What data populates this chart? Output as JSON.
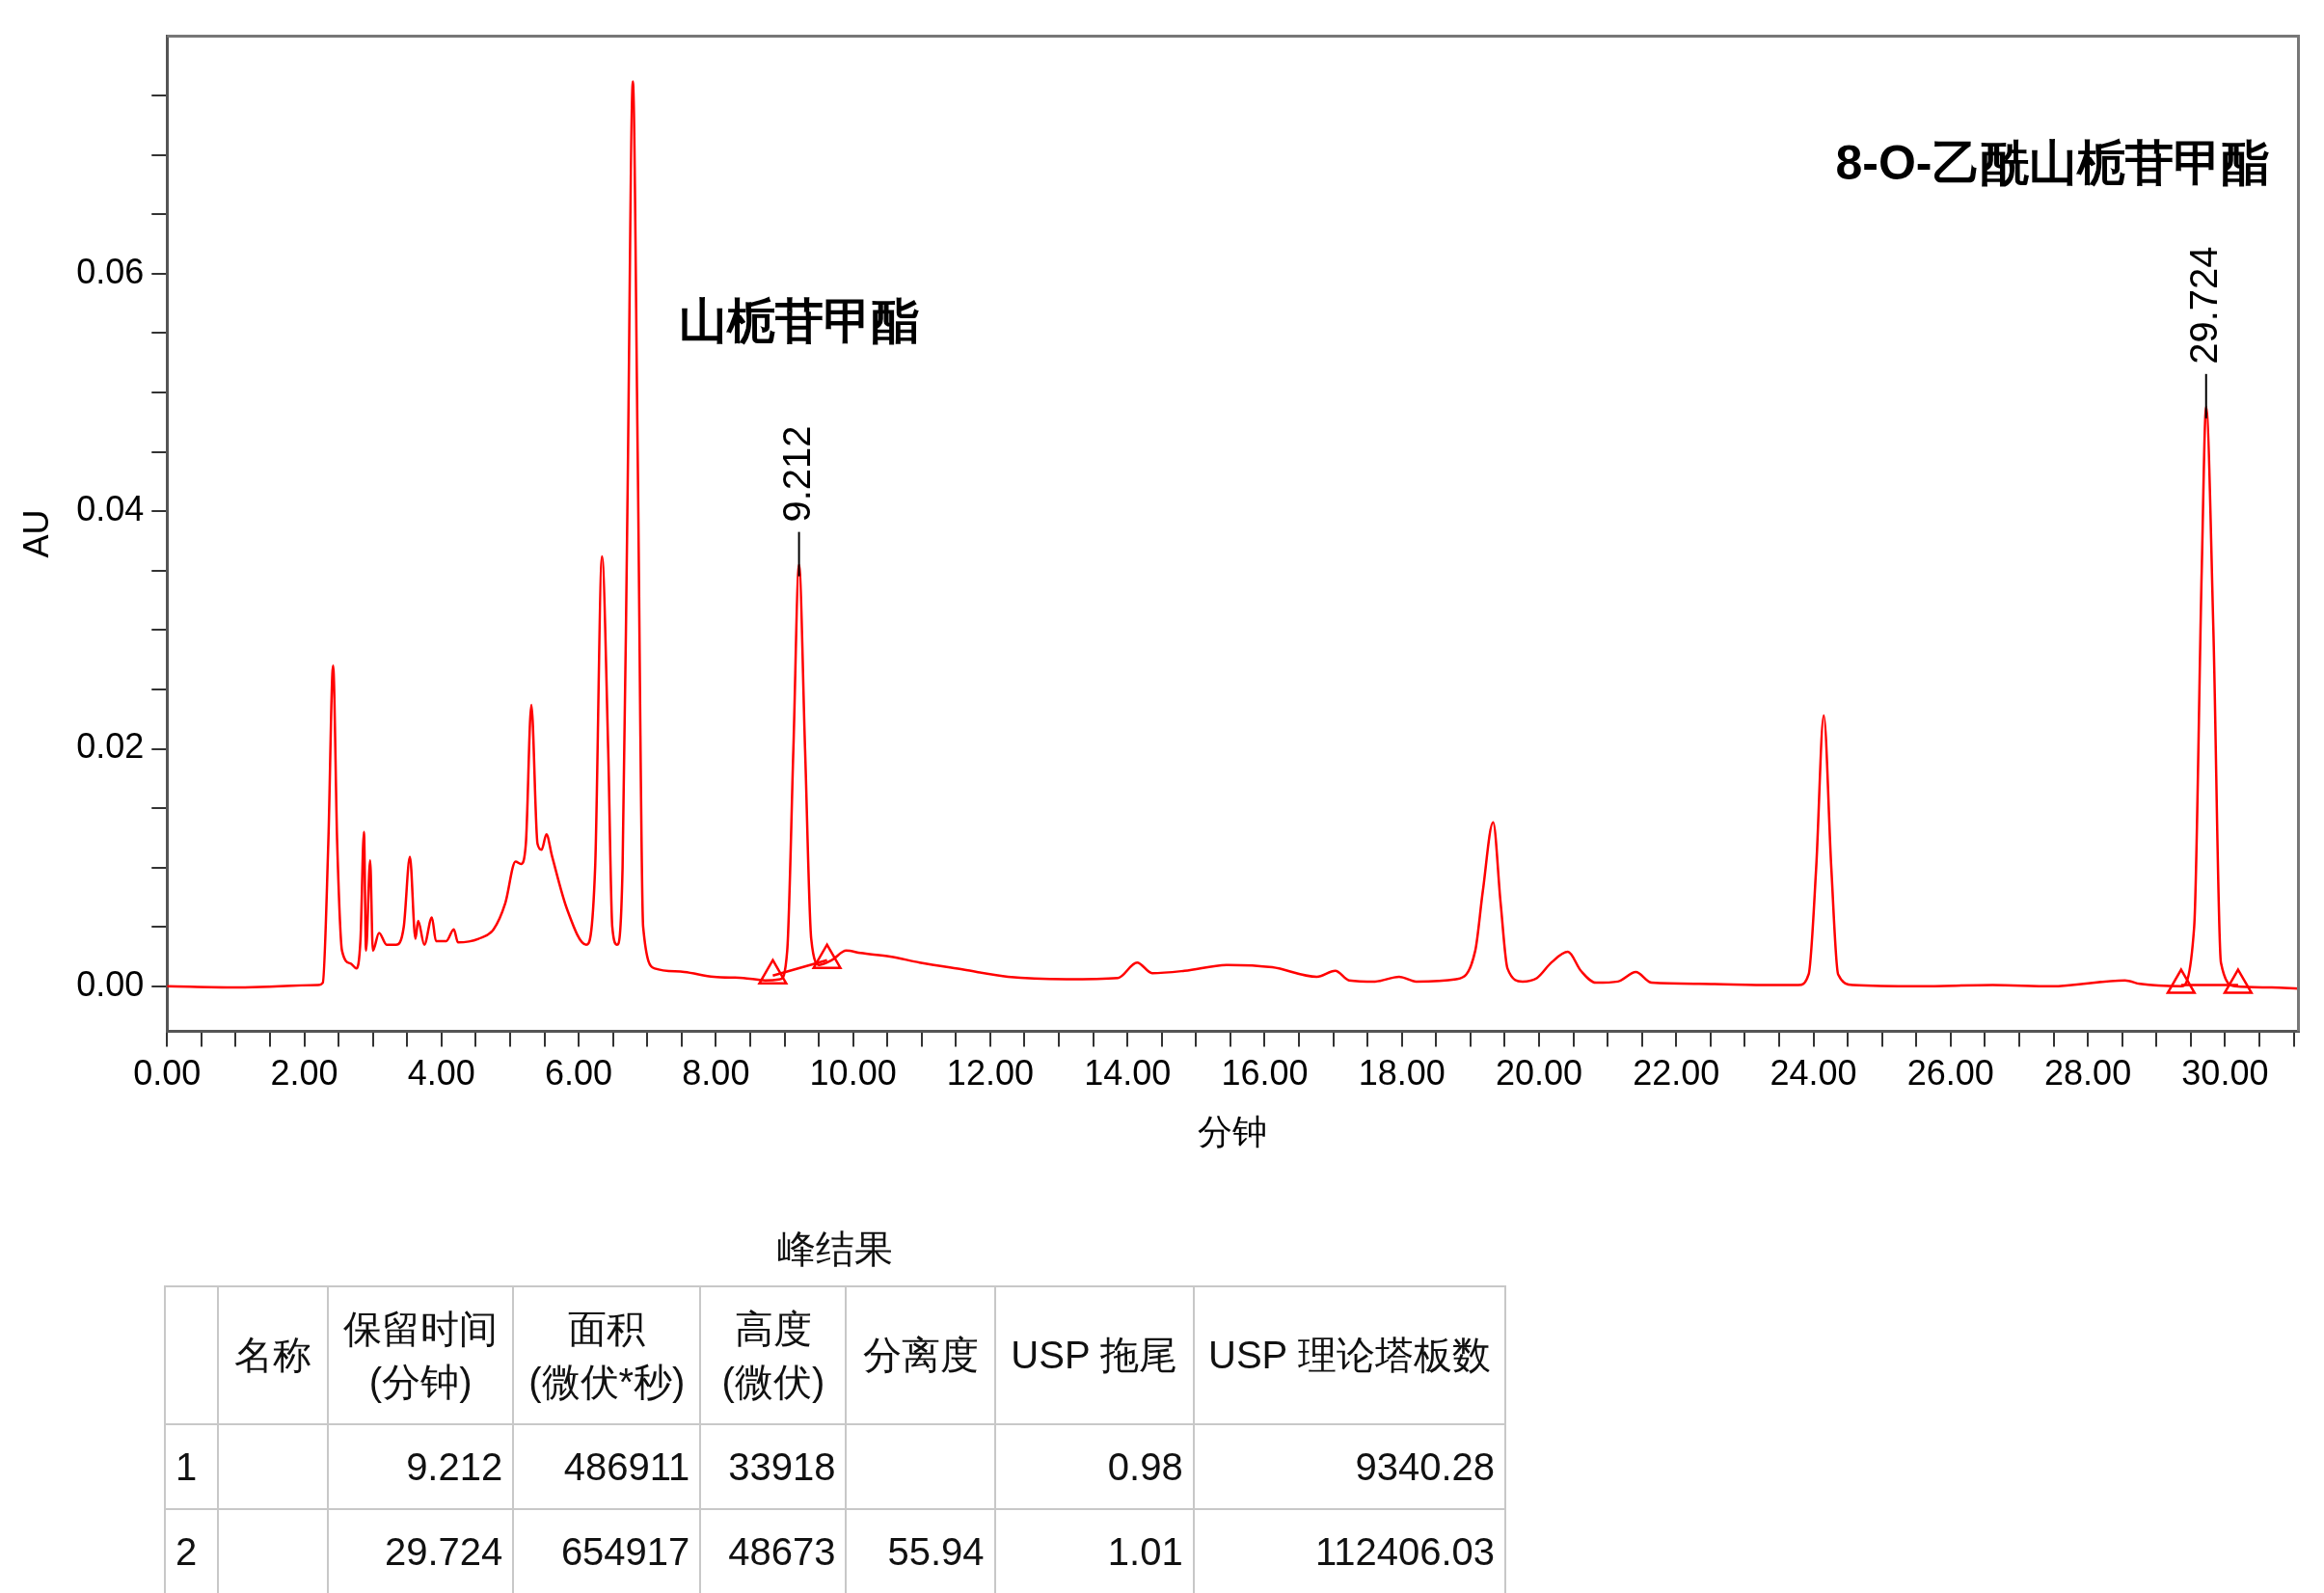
{
  "chart_data": [
    {
      "type": "line",
      "xlabel": "分钟",
      "ylabel": "AU",
      "xlim": [
        0,
        31.07
      ],
      "ylim": [
        -0.0038,
        0.08
      ],
      "grid": false,
      "legend": false,
      "marker": "none",
      "xticks": [
        {
          "value": 0,
          "label": "0.00"
        },
        {
          "value": 0.5,
          "label": null
        },
        {
          "value": 1,
          "label": null
        },
        {
          "value": 1.5,
          "label": null
        },
        {
          "value": 2,
          "label": "2.00"
        },
        {
          "value": 2.5,
          "label": null
        },
        {
          "value": 3,
          "label": null
        },
        {
          "value": 3.5,
          "label": null
        },
        {
          "value": 4,
          "label": "4.00"
        },
        {
          "value": 4.5,
          "label": null
        },
        {
          "value": 5,
          "label": null
        },
        {
          "value": 5.5,
          "label": null
        },
        {
          "value": 6,
          "label": "6.00"
        },
        {
          "value": 6.5,
          "label": null
        },
        {
          "value": 7,
          "label": null
        },
        {
          "value": 7.5,
          "label": null
        },
        {
          "value": 8,
          "label": "8.00"
        },
        {
          "value": 8.5,
          "label": null
        },
        {
          "value": 9,
          "label": null
        },
        {
          "value": 9.5,
          "label": null
        },
        {
          "value": 10,
          "label": "10.00"
        },
        {
          "value": 10.5,
          "label": null
        },
        {
          "value": 11,
          "label": null
        },
        {
          "value": 11.5,
          "label": null
        },
        {
          "value": 12,
          "label": "12.00"
        },
        {
          "value": 12.5,
          "label": null
        },
        {
          "value": 13,
          "label": null
        },
        {
          "value": 13.5,
          "label": null
        },
        {
          "value": 14,
          "label": "14.00"
        },
        {
          "value": 14.5,
          "label": null
        },
        {
          "value": 15,
          "label": null
        },
        {
          "value": 15.5,
          "label": null
        },
        {
          "value": 16,
          "label": "16.00"
        },
        {
          "value": 16.5,
          "label": null
        },
        {
          "value": 17,
          "label": null
        },
        {
          "value": 17.5,
          "label": null
        },
        {
          "value": 18,
          "label": "18.00"
        },
        {
          "value": 18.5,
          "label": null
        },
        {
          "value": 19,
          "label": null
        },
        {
          "value": 19.5,
          "label": null
        },
        {
          "value": 20,
          "label": "20.00"
        },
        {
          "value": 20.5,
          "label": null
        },
        {
          "value": 21,
          "label": null
        },
        {
          "value": 21.5,
          "label": null
        },
        {
          "value": 22,
          "label": "22.00"
        },
        {
          "value": 22.5,
          "label": null
        },
        {
          "value": 23,
          "label": null
        },
        {
          "value": 23.5,
          "label": null
        },
        {
          "value": 24,
          "label": "24.00"
        },
        {
          "value": 24.5,
          "label": null
        },
        {
          "value": 25,
          "label": null
        },
        {
          "value": 25.5,
          "label": null
        },
        {
          "value": 26,
          "label": "26.00"
        },
        {
          "value": 26.5,
          "label": null
        },
        {
          "value": 27,
          "label": null
        },
        {
          "value": 27.5,
          "label": null
        },
        {
          "value": 28,
          "label": "28.00"
        },
        {
          "value": 28.5,
          "label": null
        },
        {
          "value": 29,
          "label": null
        },
        {
          "value": 29.5,
          "label": null
        },
        {
          "value": 30,
          "label": "30.00"
        },
        {
          "value": 30.5,
          "label": null
        },
        {
          "value": 31,
          "label": null
        }
      ],
      "yticks": [
        {
          "value": 0,
          "label": "0.00"
        },
        {
          "value": 0.005,
          "label": null
        },
        {
          "value": 0.01,
          "label": null
        },
        {
          "value": 0.015,
          "label": null
        },
        {
          "value": 0.02,
          "label": "0.02"
        },
        {
          "value": 0.025,
          "label": null
        },
        {
          "value": 0.03,
          "label": null
        },
        {
          "value": 0.035,
          "label": null
        },
        {
          "value": 0.04,
          "label": "0.04"
        },
        {
          "value": 0.045,
          "label": null
        },
        {
          "value": 0.05,
          "label": null
        },
        {
          "value": 0.055,
          "label": null
        },
        {
          "value": 0.06,
          "label": "0.06"
        },
        {
          "value": 0.065,
          "label": null
        },
        {
          "value": 0.07,
          "label": null
        },
        {
          "value": 0.075,
          "label": null
        }
      ],
      "series": [
        {
          "type": "line",
          "color": "#ff0000",
          "x": [
            0,
            1.0,
            2.2,
            2.27,
            2.35,
            2.42,
            2.48,
            2.55,
            2.68,
            2.76,
            2.82,
            2.87,
            2.9,
            2.96,
            3.0,
            3.09,
            3.2,
            3.34,
            3.45,
            3.54,
            3.62,
            3.66,
            3.75,
            3.86,
            3.92,
            4.07,
            4.18,
            4.24,
            4.54,
            4.76,
            4.93,
            5.08,
            5.16,
            5.23,
            5.31,
            5.4,
            5.46,
            5.53,
            5.61,
            5.83,
            6.11,
            6.24,
            6.34,
            6.43,
            6.49,
            6.56,
            6.64,
            6.71,
            6.79,
            6.86,
            6.94,
            7.11,
            7.54,
            7.97,
            8.4,
            8.72,
            8.94,
            9.04,
            9.13,
            9.212,
            9.3,
            9.39,
            9.51,
            9.69,
            9.9,
            10.11,
            10.54,
            10.97,
            11.61,
            12.26,
            13.11,
            13.86,
            14.14,
            14.36,
            14.83,
            15.47,
            16.11,
            16.76,
            17.03,
            17.23,
            17.61,
            17.96,
            18.21,
            18.79,
            19.07,
            19.18,
            19.33,
            19.44,
            19.54,
            19.76,
            19.97,
            20.18,
            20.42,
            20.61,
            20.83,
            21.15,
            21.41,
            21.64,
            22.33,
            23.4,
            23.78,
            23.93,
            24.04,
            24.15,
            24.26,
            24.36,
            24.58,
            25.54,
            26.61,
            27.47,
            28.54,
            28.76,
            29.36,
            29.55,
            29.66,
            29.724,
            29.83,
            29.94,
            30.15,
            30.68,
            31.07
          ],
          "values": [
            0,
            -0.0001,
            0.0001,
            0.0003,
            0.012,
            0.027,
            0.012,
            0.003,
            0.0019,
            0.0015,
            0.004,
            0.013,
            0.003,
            0.0106,
            0.003,
            0.0045,
            0.0035,
            0.0035,
            0.005,
            0.0109,
            0.004,
            0.0055,
            0.0035,
            0.0058,
            0.0038,
            0.0038,
            0.0048,
            0.0037,
            0.004,
            0.0048,
            0.007,
            0.0105,
            0.0103,
            0.012,
            0.0237,
            0.012,
            0.0115,
            0.0128,
            0.011,
            0.0065,
            0.0035,
            0.01,
            0.0362,
            0.02,
            0.005,
            0.0035,
            0.01,
            0.04,
            0.0762,
            0.045,
            0.005,
            0.0015,
            0.0012,
            0.0008,
            0.0007,
            0.0005,
            0.0006,
            0.003,
            0.02,
            0.0355,
            0.02,
            0.004,
            0.0018,
            0.0022,
            0.003,
            0.0028,
            0.0025,
            0.002,
            0.0014,
            0.0008,
            0.0006,
            0.0007,
            0.002,
            0.0011,
            0.0013,
            0.0018,
            0.0016,
            0.0008,
            0.0013,
            0.0005,
            0.0004,
            0.0008,
            0.0004,
            0.0006,
            0.003,
            0.008,
            0.0138,
            0.007,
            0.0015,
            0.0004,
            0.0007,
            0.002,
            0.0029,
            0.0013,
            0.0003,
            0.0004,
            0.0012,
            0.0003,
            0.0002,
            0.0001,
            0.0001,
            0.001,
            0.01,
            0.0228,
            0.01,
            0.001,
            0.0001,
            0,
            0.0001,
            0,
            0.0005,
            0.0002,
            0,
            0.005,
            0.035,
            0.0488,
            0.03,
            0.002,
            0,
            -0.0001,
            -0.0002
          ],
          "value_labels": [
            null,
            null,
            null,
            null,
            null,
            null,
            null,
            null,
            null,
            null,
            null,
            null,
            null,
            null,
            null,
            null,
            null,
            null,
            null,
            null,
            null,
            null,
            null,
            null,
            null,
            null,
            null,
            null,
            null,
            null,
            null,
            null,
            null,
            null,
            null,
            null,
            null,
            null,
            null,
            null,
            null,
            null,
            null,
            null,
            null,
            null,
            null,
            null,
            null,
            null,
            null,
            null,
            null,
            null,
            null,
            null,
            null,
            null,
            null,
            null,
            null,
            null,
            null,
            null,
            null,
            null,
            null,
            null,
            null,
            null,
            null,
            null,
            null,
            null,
            null,
            null,
            null,
            null,
            null,
            null,
            null,
            null,
            null,
            null,
            null,
            null,
            null,
            null,
            null,
            null,
            null,
            null,
            null,
            null,
            null,
            null,
            null,
            null,
            null,
            null,
            null,
            null,
            null,
            null,
            null,
            null,
            null,
            null,
            null,
            null,
            null,
            null,
            null,
            null,
            null,
            null,
            null,
            null,
            null,
            null,
            null
          ]
        },
        {
          "type": "line",
          "color": "#ff0000",
          "marker": "triangle",
          "x": [
            8.83,
            9.62,
            9.63,
            29.36,
            30.19
          ],
          "values": [
            0.0009,
            0.0022,
            null,
            0.0001,
            0.0001
          ]
        }
      ],
      "annotations": [
        {
          "text": "9.212",
          "x": 9.212,
          "y": 0.0355
        },
        {
          "text": "29.724",
          "x": 29.724,
          "y": 0.0488
        },
        "山栀苷甲酯",
        "8-O-乙酰山栀苷甲酯"
      ]
    },
    {
      "type": "other",
      "title": "峰结果",
      "categories": [
        null,
        "名称",
        "保留时间\n(分钟)",
        "面积\n(微伏*秒)",
        "高度\n(微伏)",
        "分离度",
        "USP 拖尾",
        "USP 理论塔板数"
      ],
      "y_categories": [
        "1",
        "2"
      ],
      "cell_labels": [
        [
          null,
          "9.212",
          "486911",
          "33918",
          null,
          "0.98",
          "9340.28"
        ],
        [
          null,
          "29.724",
          "654917",
          "48673",
          "55.94",
          "1.01",
          "112406.03"
        ]
      ]
    }
  ]
}
